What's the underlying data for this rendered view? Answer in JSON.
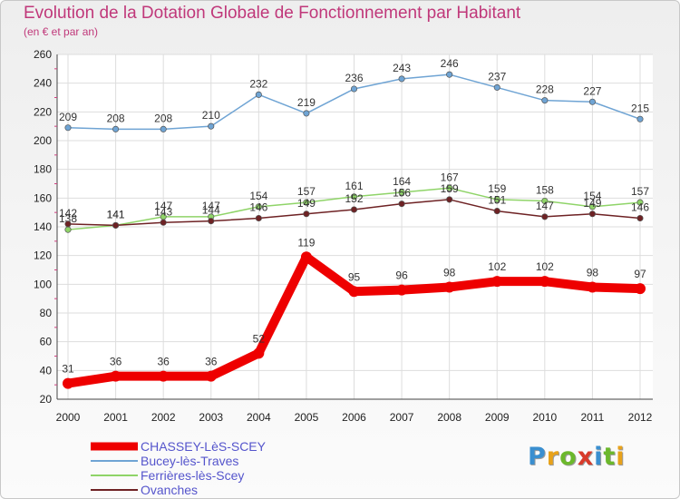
{
  "chart_data": {
    "type": "line",
    "title": "Evolution de la Dotation Globale de Fonctionnement par Habitant",
    "subtitle": "(en € et par an)",
    "xlabel": "",
    "ylabel": "",
    "ylim": [
      20,
      260
    ],
    "yticks": [
      20,
      40,
      60,
      80,
      100,
      120,
      140,
      160,
      180,
      200,
      220,
      240,
      260
    ],
    "grid": true,
    "legend_position": "bottom-left",
    "x": [
      "2000",
      "2001",
      "2002",
      "2003",
      "2004",
      "2005",
      "2006",
      "2007",
      "2008",
      "2009",
      "2010",
      "2011",
      "2012"
    ],
    "series": [
      {
        "name": "CHASSEY-LèS-SCEY",
        "color": "#ee0000",
        "bold": true,
        "values": [
          31,
          36,
          36,
          36,
          52,
          119,
          95,
          96,
          98,
          102,
          102,
          98,
          97
        ]
      },
      {
        "name": "Bucey-lès-Traves",
        "color": "#6fa4d4",
        "bold": false,
        "values": [
          209,
          208,
          208,
          210,
          232,
          219,
          236,
          243,
          246,
          237,
          228,
          227,
          215
        ]
      },
      {
        "name": "Ferrières-lès-Scey",
        "color": "#8fd468",
        "bold": false,
        "values": [
          138,
          141,
          147,
          147,
          154,
          157,
          161,
          164,
          167,
          159,
          158,
          154,
          157
        ]
      },
      {
        "name": "Ovanches",
        "color": "#6e2224",
        "bold": false,
        "values": [
          142,
          141,
          143,
          144,
          146,
          149,
          152,
          156,
          159,
          151,
          147,
          149,
          146
        ]
      }
    ]
  },
  "logo": {
    "letters": [
      "P",
      "r",
      "o",
      "x",
      "i",
      "t",
      "i"
    ],
    "colors": [
      "#3a8fd0",
      "#e8a21a",
      "#6cb82c",
      "#d83a2a",
      "#3a8fd0",
      "#6cb82c",
      "#e8a21a"
    ]
  }
}
